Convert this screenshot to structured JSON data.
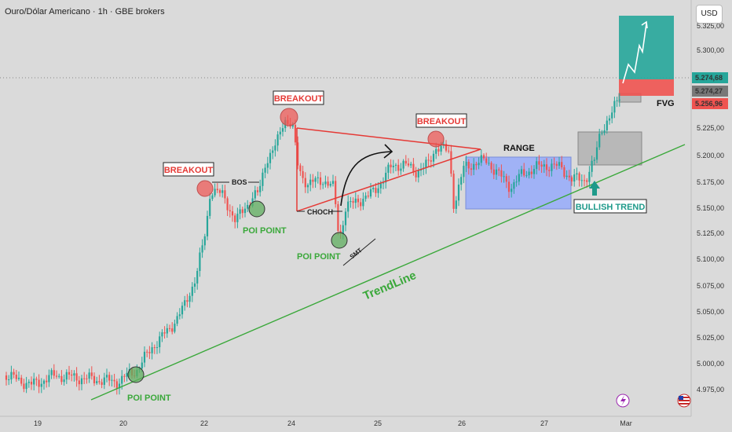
{
  "header": {
    "title": "Ouro/Dólar Americano · 1h · GBE brokers",
    "currency": "USD"
  },
  "colors": {
    "bull": "#26a69a",
    "bear": "#ef5350",
    "trendline": "#3aa83a",
    "triangle": "#e53935",
    "poi": "#5fae5f",
    "range": "#8ca4ff",
    "target": "#26a69a",
    "stop": "#ef5350"
  },
  "axis": {
    "y_ticks": [
      "5.325,00",
      "5.300,00",
      "5.225,00",
      "5.200,00",
      "5.175,00",
      "5.150,00",
      "5.125,00",
      "5.100,00",
      "5.075,00",
      "5.050,00",
      "5.025,00",
      "5.000,00",
      "4.975,00"
    ],
    "x_ticks": [
      "19",
      "20",
      "22",
      "24",
      "25",
      "26",
      "27",
      "Mar"
    ],
    "price_labels": [
      {
        "text": "5.274,68",
        "color": "#26a69a"
      },
      {
        "text": "5.274,27",
        "color": "#787878"
      },
      {
        "text": "5.256,96",
        "color": "#ef5350"
      }
    ]
  },
  "annotations": {
    "breakout_1": "BREAKOUT",
    "breakout_2": "BREAKOUT",
    "breakout_3": "BREAKOUT",
    "bos": "BOS",
    "choch": "CHOCH",
    "smt": "SMT",
    "range": "RANGE",
    "fvg": "FVG",
    "bullish_trend": "BULLISH TREND",
    "poi_1": "POI POINT",
    "poi_2": "POI POINT",
    "poi_3": "POI POINT",
    "trendline": "TrendLine"
  },
  "icons": {
    "lightning": "lightning-icon",
    "flag": "us-flag-icon"
  }
}
